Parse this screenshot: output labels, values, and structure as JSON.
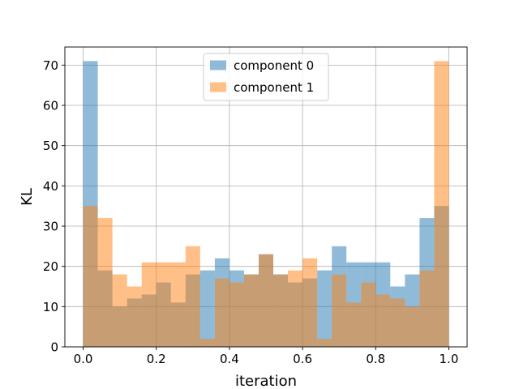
{
  "chart_data": {
    "type": "bar",
    "title": "",
    "xlabel": "iteration",
    "ylabel": "KL",
    "xlim": [
      -0.05,
      1.05
    ],
    "ylim": [
      0,
      74.5
    ],
    "xticks": [
      0.0,
      0.2,
      0.4,
      0.6,
      0.8,
      1.0
    ],
    "xtick_labels": [
      "0.0",
      "0.2",
      "0.4",
      "0.6",
      "0.8",
      "1.0"
    ],
    "yticks": [
      0,
      10,
      20,
      30,
      40,
      50,
      60,
      70
    ],
    "ytick_labels": [
      "0",
      "10",
      "20",
      "30",
      "40",
      "50",
      "60",
      "70"
    ],
    "grid": true,
    "legend_position": "upper-center",
    "bin_edges": [
      0.0,
      0.04,
      0.08,
      0.12,
      0.16,
      0.2,
      0.24,
      0.28,
      0.32,
      0.36,
      0.4,
      0.44,
      0.48,
      0.52,
      0.56,
      0.6,
      0.64,
      0.68,
      0.72,
      0.76,
      0.8,
      0.84,
      0.88,
      0.92,
      0.96,
      1.0
    ],
    "series": [
      {
        "name": "component 0",
        "color": "#1f77b4",
        "values": [
          71,
          19,
          10,
          12,
          13,
          16,
          11,
          18,
          19,
          22,
          19,
          18,
          23,
          18,
          16,
          17,
          19,
          25,
          21,
          21,
          21,
          15,
          18,
          32,
          35
        ]
      },
      {
        "name": "component 1",
        "color": "#ff7f0e",
        "values": [
          35,
          32,
          18,
          15,
          21,
          21,
          21,
          25,
          2,
          17,
          16,
          18,
          23,
          18,
          19,
          22,
          2,
          18,
          11,
          16,
          13,
          12,
          10,
          19,
          71
        ]
      }
    ]
  }
}
